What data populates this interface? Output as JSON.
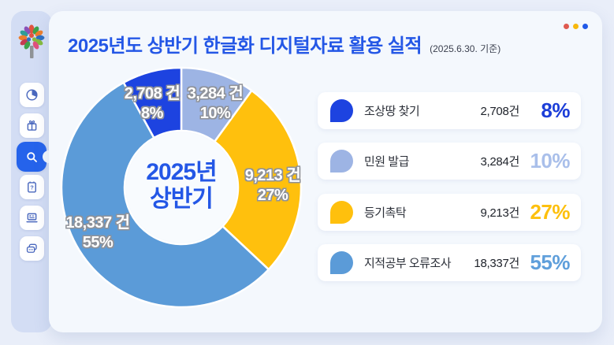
{
  "window": {
    "dots": [
      {
        "name": "red",
        "color": "#df5a50"
      },
      {
        "name": "yellow",
        "color": "#f7b80d"
      },
      {
        "name": "blue",
        "color": "#2059e8"
      }
    ]
  },
  "header": {
    "title": "2025년도 상반기 한글화 디지털자료 활용 실적",
    "subtitle": "(2025.6.30. 기준)"
  },
  "sidebar": {
    "active_item": "search",
    "icons": [
      "pie-chart",
      "gift",
      "search",
      "note-question",
      "laptop",
      "chat"
    ]
  },
  "chart_data": {
    "type": "donut",
    "title": "2025년도 상반기 한글화 디지털자료 활용 실적",
    "center_label": {
      "line1": "2025년",
      "line2": "상반기"
    },
    "start_angle_deg": 0,
    "unit": "건",
    "segments": [
      {
        "name": "민원 발급",
        "value": 3284,
        "pct": 10,
        "color": "#9db4e4",
        "display_value": "3,284 건",
        "display_pct": "10%"
      },
      {
        "name": "등기촉탁",
        "value": 9213,
        "pct": 27,
        "color": "#ffc00d",
        "display_value": "9,213 건",
        "display_pct": "27%"
      },
      {
        "name": "지적공부 오류조사",
        "value": 18337,
        "pct": 55,
        "color": "#5b9bd8",
        "display_value": "18,337 건",
        "display_pct": "55%"
      },
      {
        "name": "조상땅 찾기",
        "value": 2708,
        "pct": 8,
        "color": "#1d43e0",
        "display_value": "2,708 건",
        "display_pct": "8%"
      }
    ]
  },
  "legend_rows": [
    {
      "label": "조상땅 찾기",
      "value": "2,708건",
      "pct": "8%",
      "color": "#1d43e0",
      "pct_color": "#1c3ed8"
    },
    {
      "label": "민원 발급",
      "value": "3,284건",
      "pct": "10%",
      "color": "#9db4e4",
      "pct_color": "#a9bfea"
    },
    {
      "label": "등기촉탁",
      "value": "9,213건",
      "pct": "27%",
      "color": "#ffc00d",
      "pct_color": "#fdc00e"
    },
    {
      "label": "지적공부 오류조사",
      "value": "18,337건",
      "pct": "55%",
      "color": "#5b9bd8",
      "pct_color": "#5f9fdb"
    }
  ]
}
